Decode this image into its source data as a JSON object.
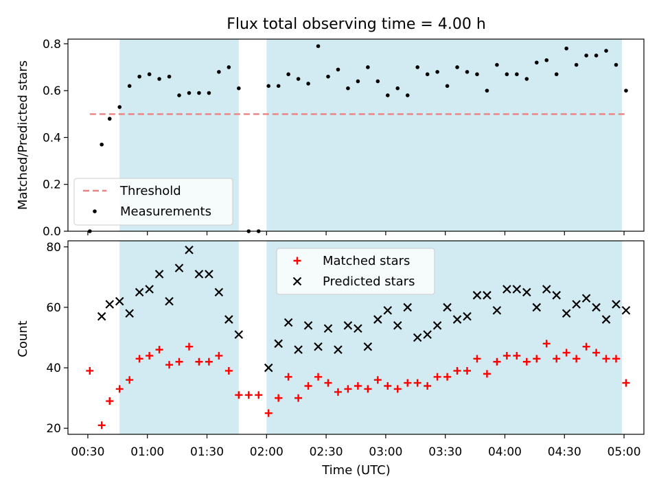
{
  "chart_data": {
    "title": "Flux total observing time = 4.00 h",
    "xlabel": "Time (UTC)",
    "x_ticks": [
      "00:30",
      "01:00",
      "01:30",
      "02:00",
      "02:30",
      "03:00",
      "03:30",
      "04:00",
      "04:30",
      "05:00"
    ],
    "shaded_intervals": [
      [
        "00:46",
        "01:46"
      ],
      [
        "02:00",
        "04:59"
      ]
    ],
    "shade_color": "#add8e6",
    "panels": [
      {
        "type": "scatter",
        "ylabel": "Matched/Predicted stars",
        "ylim": [
          0,
          0.82
        ],
        "y_ticks": [
          "0.0",
          "0.2",
          "0.4",
          "0.6",
          "0.8"
        ],
        "legend_position": "lower-left",
        "series": [
          {
            "name": "Threshold",
            "style": "dashed-line",
            "color": "#f08080",
            "x": [
              "00:31",
              "05:01"
            ],
            "values": [
              0.5,
              0.5
            ]
          },
          {
            "name": "Measurements",
            "style": "dot",
            "color": "#000000",
            "x": [
              "00:31",
              "00:37",
              "00:41",
              "00:46",
              "00:51",
              "00:56",
              "01:01",
              "01:06",
              "01:11",
              "01:16",
              "01:21",
              "01:26",
              "01:31",
              "01:36",
              "01:41",
              "01:46",
              "01:51",
              "01:56",
              "02:01",
              "02:06",
              "02:11",
              "02:16",
              "02:21",
              "02:26",
              "02:31",
              "02:36",
              "02:41",
              "02:46",
              "02:51",
              "02:56",
              "03:01",
              "03:06",
              "03:11",
              "03:16",
              "03:21",
              "03:26",
              "03:31",
              "03:36",
              "03:41",
              "03:46",
              "03:51",
              "03:56",
              "04:01",
              "04:06",
              "04:11",
              "04:16",
              "04:21",
              "04:26",
              "04:31",
              "04:36",
              "04:41",
              "04:46",
              "04:51",
              "04:56",
              "05:01"
            ],
            "values": [
              0.0,
              0.37,
              0.48,
              0.53,
              0.62,
              0.66,
              0.67,
              0.65,
              0.66,
              0.58,
              0.59,
              0.59,
              0.59,
              0.68,
              0.7,
              0.61,
              0.0,
              0.0,
              0.62,
              0.62,
              0.67,
              0.65,
              0.63,
              0.79,
              0.66,
              0.69,
              0.61,
              0.64,
              0.7,
              0.64,
              0.58,
              0.61,
              0.58,
              0.7,
              0.67,
              0.68,
              0.62,
              0.7,
              0.68,
              0.67,
              0.6,
              0.71,
              0.67,
              0.67,
              0.65,
              0.72,
              0.73,
              0.67,
              0.78,
              0.71,
              0.75,
              0.75,
              0.77,
              0.71,
              0.6
            ]
          }
        ]
      },
      {
        "type": "scatter",
        "ylabel": "Count",
        "ylim": [
          18,
          82
        ],
        "y_ticks": [
          "20",
          "40",
          "60",
          "80"
        ],
        "legend_position": "top-center",
        "series": [
          {
            "name": "Matched stars",
            "style": "plus",
            "color": "#ff0000",
            "x": [
              "00:31",
              "00:37",
              "00:41",
              "00:46",
              "00:51",
              "00:56",
              "01:01",
              "01:06",
              "01:11",
              "01:16",
              "01:21",
              "01:26",
              "01:31",
              "01:36",
              "01:41",
              "01:46",
              "01:51",
              "01:56",
              "02:01",
              "02:06",
              "02:11",
              "02:16",
              "02:21",
              "02:26",
              "02:31",
              "02:36",
              "02:41",
              "02:46",
              "02:51",
              "02:56",
              "03:01",
              "03:06",
              "03:11",
              "03:16",
              "03:21",
              "03:26",
              "03:31",
              "03:36",
              "03:41",
              "03:46",
              "03:51",
              "03:56",
              "04:01",
              "04:06",
              "04:11",
              "04:16",
              "04:21",
              "04:26",
              "04:31",
              "04:36",
              "04:41",
              "04:46",
              "04:51",
              "04:56",
              "05:01"
            ],
            "values": [
              39,
              21,
              29,
              33,
              36,
              43,
              44,
              46,
              41,
              42,
              47,
              42,
              42,
              44,
              39,
              31,
              31,
              31,
              25,
              30,
              37,
              30,
              34,
              37,
              35,
              32,
              33,
              34,
              33,
              36,
              34,
              33,
              35,
              35,
              34,
              37,
              37,
              39,
              39,
              43,
              38,
              42,
              44,
              44,
              42,
              43,
              48,
              43,
              45,
              43,
              47,
              45,
              43,
              43,
              35
            ]
          },
          {
            "name": "Predicted stars",
            "style": "x",
            "color": "#000000",
            "x": [
              "00:37",
              "00:41",
              "00:46",
              "00:51",
              "00:56",
              "01:01",
              "01:06",
              "01:11",
              "01:16",
              "01:21",
              "01:26",
              "01:31",
              "01:36",
              "01:41",
              "01:46",
              "02:01",
              "02:06",
              "02:11",
              "02:16",
              "02:21",
              "02:26",
              "02:31",
              "02:36",
              "02:41",
              "02:46",
              "02:51",
              "02:56",
              "03:01",
              "03:06",
              "03:11",
              "03:16",
              "03:21",
              "03:26",
              "03:31",
              "03:36",
              "03:41",
              "03:46",
              "03:51",
              "03:56",
              "04:01",
              "04:06",
              "04:11",
              "04:16",
              "04:21",
              "04:26",
              "04:31",
              "04:36",
              "04:41",
              "04:46",
              "04:51",
              "04:56",
              "05:01"
            ],
            "values": [
              57,
              61,
              62,
              58,
              65,
              66,
              71,
              62,
              73,
              79,
              71,
              71,
              65,
              56,
              51,
              40,
              48,
              55,
              46,
              54,
              47,
              53,
              46,
              54,
              53,
              47,
              56,
              59,
              54,
              60,
              50,
              51,
              54,
              60,
              56,
              57,
              64,
              64,
              59,
              66,
              66,
              65,
              60,
              66,
              64,
              58,
              61,
              63,
              60,
              56,
              61,
              59
            ]
          }
        ]
      }
    ]
  }
}
